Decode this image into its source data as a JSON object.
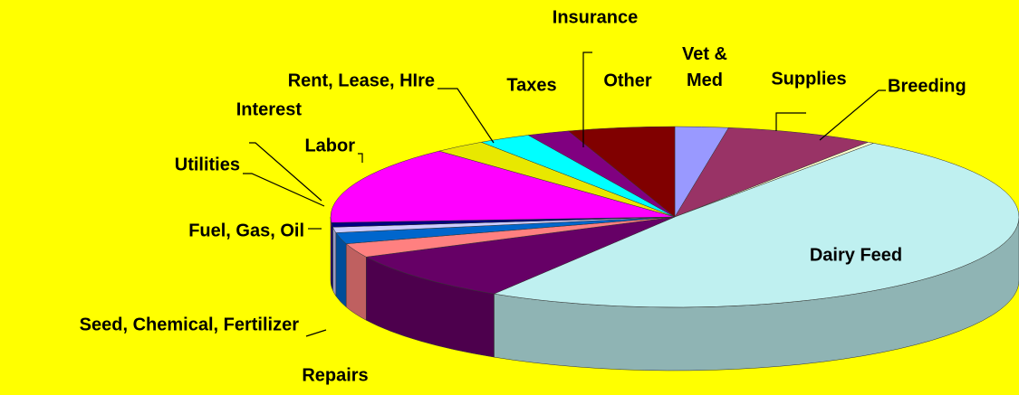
{
  "chart_data": {
    "type": "pie3d",
    "categories": [
      "Vet & Med",
      "Supplies",
      "Breeding",
      "Dairy Feed",
      "Repairs",
      "Seed, Chemical, Fertilizer",
      "Fuel, Gas, Oil",
      "Utilities",
      "Interest",
      "Labor",
      "Rent, Lease, HIre",
      "Taxes",
      "Other",
      "Insurance"
    ],
    "values": [
      2.5,
      7,
      0.3,
      49,
      8.9,
      2.5,
      2,
      1,
      0.8,
      14,
      2.5,
      2.5,
      2,
      5
    ],
    "colors": [
      "#9999ff",
      "#993366",
      "#ffffcc",
      "#bff0f0",
      "#660066",
      "#ff8080",
      "#0066cc",
      "#ccccff",
      "#000080",
      "#ff00ff",
      "#e8e800",
      "#00ffff",
      "#800080",
      "#800000"
    ]
  }
}
